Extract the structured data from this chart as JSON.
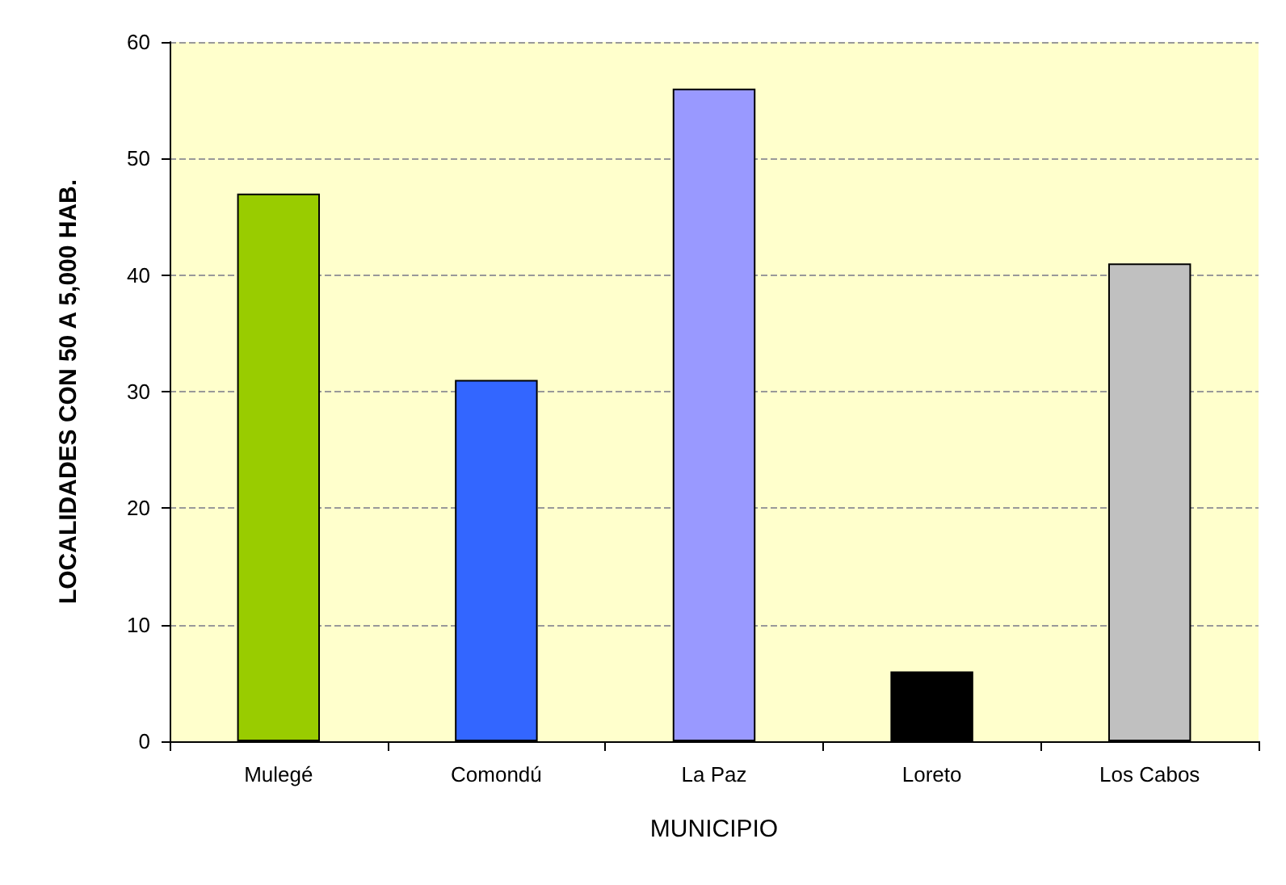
{
  "chart_data": {
    "type": "bar",
    "xlabel": "MUNICIPIO",
    "ylabel": "LOCALIDADES CON 50 A 5,000 HAB.",
    "categories": [
      "Mulegé",
      "Comondú",
      "La Paz",
      "Loreto",
      "Los Cabos"
    ],
    "values": [
      47,
      31,
      56,
      6,
      41
    ],
    "colors": [
      "#99cc00",
      "#3366ff",
      "#9999ff",
      "#000000",
      "#c0c0c0"
    ],
    "ylim": [
      0,
      60
    ],
    "yticks": [
      0,
      10,
      20,
      30,
      40,
      50,
      60
    ],
    "grid": "y"
  }
}
